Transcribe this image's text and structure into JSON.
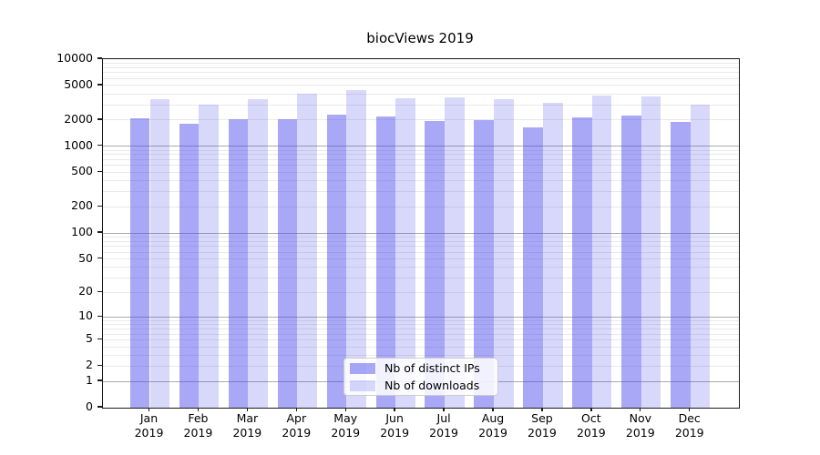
{
  "title": "biocViews 2019",
  "chart_data": {
    "type": "bar",
    "title": "biocViews 2019",
    "scale": "log1p",
    "grid": true,
    "legend_position": "bottom-center",
    "categories": [
      "Jan 2019",
      "Feb 2019",
      "Mar 2019",
      "Apr 2019",
      "May 2019",
      "Jun 2019",
      "Jul 2019",
      "Aug 2019",
      "Sep 2019",
      "Oct 2019",
      "Nov 2019",
      "Dec 2019"
    ],
    "series": [
      {
        "name": "Nb of distinct IPs",
        "values": [
          2090,
          1820,
          2040,
          2060,
          2290,
          2200,
          1950,
          1980,
          1660,
          2150,
          2250,
          1900
        ]
      },
      {
        "name": "Nb of downloads",
        "values": [
          3490,
          2970,
          3460,
          4030,
          4400,
          3570,
          3660,
          3460,
          3140,
          3810,
          3690,
          3000
        ]
      }
    ],
    "yticks": [
      0,
      1,
      2,
      5,
      10,
      20,
      50,
      100,
      200,
      500,
      1000,
      2000,
      5000,
      10000
    ],
    "ylim": [
      0,
      10000
    ],
    "xlabel": "",
    "ylabel": ""
  },
  "colors": {
    "bar_distinct_ips": "rgba(70,70,238,0.47)",
    "bar_downloads": "rgba(70,70,238,0.21)",
    "grid_major": "#ababab",
    "grid_minor": "#e9e9e9",
    "axis": "#1a1a1a"
  },
  "legend": {
    "items": [
      {
        "label": "Nb of distinct IPs"
      },
      {
        "label": "Nb of downloads"
      }
    ]
  }
}
